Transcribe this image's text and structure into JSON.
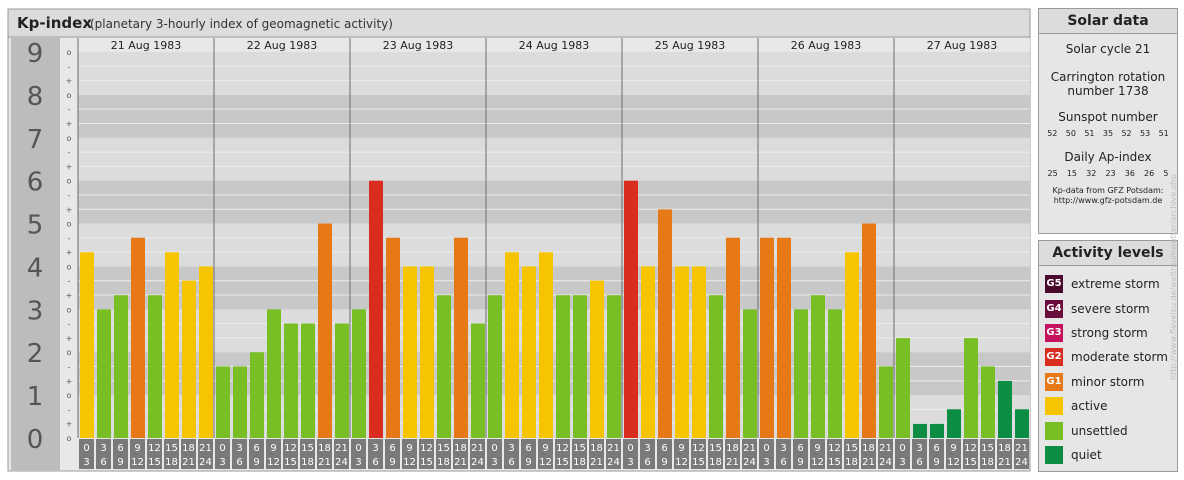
{
  "header": {
    "title": "Kp-index",
    "subtitle": "(planetary 3-hourly index of geomagnetic activity)"
  },
  "chart_data": {
    "type": "bar",
    "title": "Kp-index",
    "subtitle": "(planetary 3-hourly index of geomagnetic activity)",
    "ylim": [
      0,
      9
    ],
    "y_ticks": [
      "0",
      "1",
      "2",
      "3",
      "4",
      "5",
      "6",
      "7",
      "8",
      "9"
    ],
    "y_subticks": [
      "-",
      "o",
      "+"
    ],
    "days": [
      "21 Aug 1983",
      "22 Aug 1983",
      "23 Aug 1983",
      "24 Aug 1983",
      "25 Aug 1983",
      "26 Aug 1983",
      "27 Aug 1983"
    ],
    "interval_labels": [
      [
        "0",
        "3"
      ],
      [
        "3",
        "6"
      ],
      [
        "6",
        "9"
      ],
      [
        "9",
        "12"
      ],
      [
        "12",
        "15"
      ],
      [
        "15",
        "18"
      ],
      [
        "18",
        "21"
      ],
      [
        "21",
        "24"
      ]
    ],
    "values": [
      [
        4.33,
        3.0,
        3.33,
        4.67,
        3.33,
        4.33,
        3.67,
        4.0
      ],
      [
        1.67,
        1.67,
        2.0,
        3.0,
        2.67,
        2.67,
        5.0,
        2.67
      ],
      [
        3.0,
        6.0,
        4.67,
        4.0,
        4.0,
        3.33,
        4.67,
        2.67
      ],
      [
        3.33,
        4.33,
        4.0,
        4.33,
        3.33,
        3.33,
        3.67,
        3.33
      ],
      [
        6.0,
        4.0,
        5.33,
        4.0,
        4.0,
        3.33,
        4.67,
        3.0
      ],
      [
        4.67,
        4.67,
        3.0,
        3.33,
        3.0,
        4.33,
        5.0,
        1.67
      ],
      [
        2.33,
        0.33,
        0.33,
        0.67,
        2.33,
        1.67,
        1.33,
        0.67
      ]
    ],
    "grid": true,
    "colors": {
      "quiet": "#0b8e44",
      "unsettled": "#78bf26",
      "active": "#f6c500",
      "g1": "#e77817",
      "g2": "#d92d1f",
      "g3": "#c4125e",
      "g4": "#6b0d3c",
      "g5": "#4a0a2e"
    }
  },
  "solar": {
    "heading": "Solar data",
    "cycle": "Solar cycle 21",
    "carrington_line1": "Carrington rotation",
    "carrington_line2": "number 1738",
    "sunspot_label": "Sunspot number",
    "sunspot_values": [
      "52",
      "50",
      "51",
      "35",
      "52",
      "53",
      "51"
    ],
    "ap_label": "Daily Ap-index",
    "ap_values": [
      "25",
      "15",
      "32",
      "23",
      "36",
      "26",
      "5"
    ],
    "source_line1": "Kp-data from GFZ Potsdam:",
    "source_line2": "http://www.gfz-potsdam.de"
  },
  "levels": {
    "heading": "Activity levels",
    "items": [
      {
        "code": "G5",
        "label": "extreme storm",
        "color": "#4a0a2e"
      },
      {
        "code": "G4",
        "label": "severe storm",
        "color": "#6b0d3c"
      },
      {
        "code": "G3",
        "label": "strong storm",
        "color": "#c4125e"
      },
      {
        "code": "G2",
        "label": "moderate storm",
        "color": "#d92d1f"
      },
      {
        "code": "G1",
        "label": "minor storm",
        "color": "#e77817"
      },
      {
        "code": "",
        "label": "active",
        "color": "#f6c500"
      },
      {
        "code": "",
        "label": "unsettled",
        "color": "#78bf26"
      },
      {
        "code": "",
        "label": "quiet",
        "color": "#0b8e44"
      }
    ]
  },
  "credit": "http://www.flevelsu.de/weltraumwetter/archive.php"
}
